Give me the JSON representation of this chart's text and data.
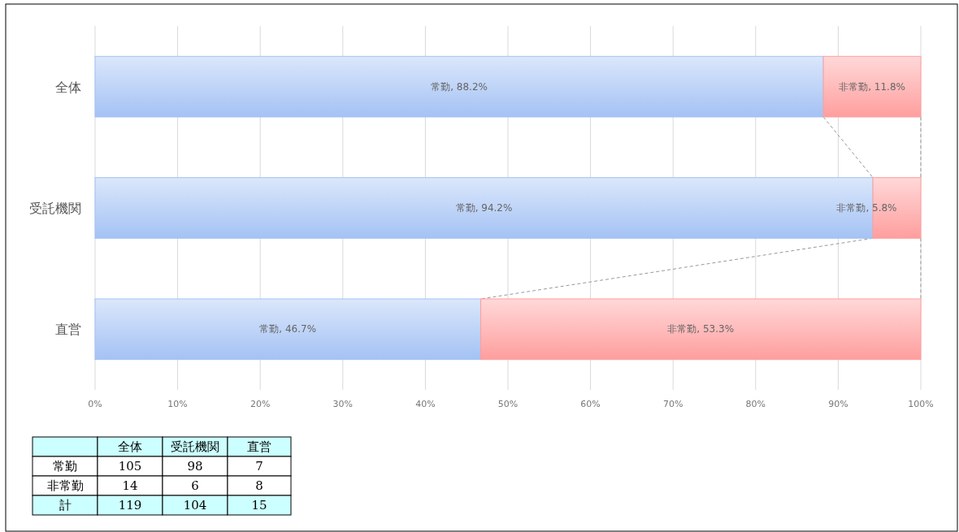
{
  "chart_data": {
    "type": "bar",
    "orientation": "horizontal",
    "stacked": true,
    "categories": [
      "全体",
      "受託機関",
      "直営"
    ],
    "series": [
      {
        "color": "#a4c2f4",
        "values": [
          88.2,
          94.2,
          46.7
        ],
        "value_labels": [
          "常勤, 88.2%",
          "常勤, 94.2%",
          "常勤, 46.7%"
        ]
      },
      {
        "color": "#ff9e9e",
        "values": [
          11.8,
          5.8,
          53.3
        ],
        "value_labels": [
          "非常勤, 11.8%",
          "非常勤, 5.8%",
          "非常勤, 53.3%"
        ]
      }
    ],
    "xlim": [
      0,
      100
    ],
    "xticks": [
      {
        "value": 0,
        "label": "0%"
      },
      {
        "value": 10,
        "label": "10%"
      },
      {
        "value": 20,
        "label": "20%"
      },
      {
        "value": 30,
        "label": "30%"
      },
      {
        "value": 40,
        "label": "40%"
      },
      {
        "value": 50,
        "label": "50%"
      },
      {
        "value": 60,
        "label": "60%"
      },
      {
        "value": 70,
        "label": "70%"
      },
      {
        "value": 80,
        "label": "80%"
      },
      {
        "value": 90,
        "label": "90%"
      },
      {
        "value": 100,
        "label": "100%"
      }
    ],
    "grid": "x",
    "annotations": [
      "全体",
      "受託機関",
      "直営",
      "常勤",
      "105",
      "98",
      "7",
      "非常勤",
      "14",
      "6",
      "8",
      "計",
      "119",
      "104",
      "15"
    ]
  }
}
